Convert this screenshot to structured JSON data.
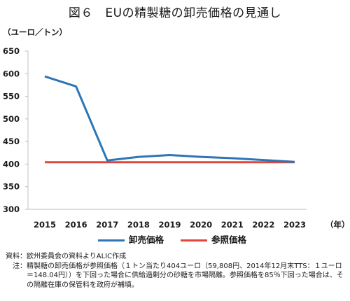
{
  "title": "図６　EUの精製糖の卸売価格の見通し",
  "y_unit": "（ユーロ／トン）",
  "x_unit": "（年）",
  "colors": {
    "wholesale": "#2e75b6",
    "reference": "#e0463c",
    "axis": "#bfbfbf",
    "grid": "#d9d9d9"
  },
  "chart_data": {
    "type": "line",
    "title": "図６　EUの精製糖の卸売価格の見通し",
    "xlabel": "（年）",
    "ylabel": "（ユーロ／トン）",
    "categories": [
      "2015",
      "2016",
      "2017",
      "2018",
      "2019",
      "2020",
      "2021",
      "2022",
      "2023"
    ],
    "ylim": [
      300,
      650
    ],
    "yticks": [
      300,
      350,
      400,
      450,
      500,
      550,
      600,
      650
    ],
    "grid": false,
    "legend_position": "bottom",
    "series": [
      {
        "name": "卸売価格",
        "color": "#2e75b6",
        "values": [
          594,
          572,
          408,
          416,
          420,
          416,
          413,
          409,
          405
        ]
      },
      {
        "name": "参照価格",
        "color": "#e0463c",
        "values": [
          404,
          404,
          404,
          404,
          404,
          404,
          404,
          404,
          404
        ]
      }
    ]
  },
  "notes": {
    "source_key": "資料：",
    "source_text": "欧州委員会の資料よりALIC作成",
    "note_key": "注：",
    "note_text": "精製糖の卸売価格が参照価格（１トン当たり404ユーロ（59,808円、2014年12月末TTS：１ユーロ＝148.04円））を下回った場合に供給過剰分の砂糖を市場隔離。参照価格を85％下回った場合は、その隔離在庫の保管料を政府が補填。"
  }
}
